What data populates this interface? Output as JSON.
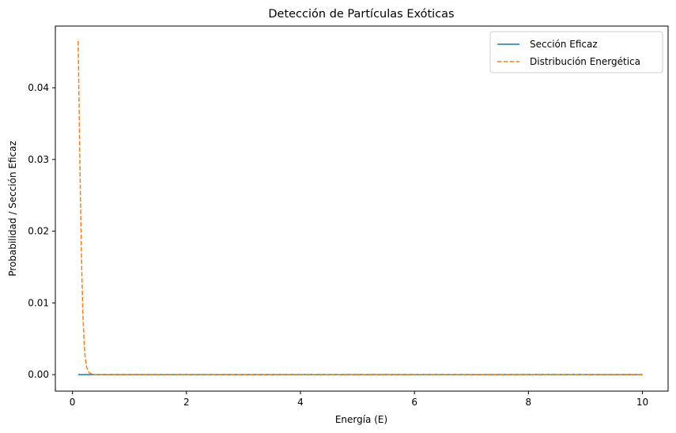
{
  "chart_data": {
    "type": "line",
    "title": "Detección de Partículas Exóticas",
    "xlabel": "Energía (E)",
    "ylabel": "Probabilidad / Sección Eficaz",
    "xlim": [
      -0.3,
      10.45
    ],
    "ylim": [
      -0.0023,
      0.0486
    ],
    "x_ticks": [
      0,
      2,
      4,
      6,
      8,
      10
    ],
    "y_ticks": [
      0.0,
      0.01,
      0.02,
      0.03,
      0.04
    ],
    "x_tick_labels": [
      "0",
      "2",
      "4",
      "6",
      "8",
      "10"
    ],
    "y_tick_labels": [
      "0.00",
      "0.01",
      "0.02",
      "0.03",
      "0.04"
    ],
    "grid": false,
    "legend_position": "top-right",
    "series": [
      {
        "name": "Sección Eficaz",
        "color": "#1f77b4",
        "style": "solid",
        "x": [
          0.1,
          10.0
        ],
        "y": [
          0.0,
          0.0
        ]
      },
      {
        "name": "Distribución Energética",
        "color": "#ff7f0e",
        "style": "dashed",
        "x": [
          0.1,
          0.12,
          0.14,
          0.16,
          0.18,
          0.2,
          0.22,
          0.25,
          0.3,
          0.4,
          0.6,
          1.0,
          2.0,
          4.0,
          6.0,
          8.0,
          10.0
        ],
        "y": [
          0.0465,
          0.0355,
          0.0245,
          0.0158,
          0.0092,
          0.0052,
          0.0026,
          0.001,
          0.0002,
          0.0,
          0.0,
          0.0,
          0.0,
          0.0,
          0.0,
          0.0,
          0.0
        ]
      }
    ]
  }
}
